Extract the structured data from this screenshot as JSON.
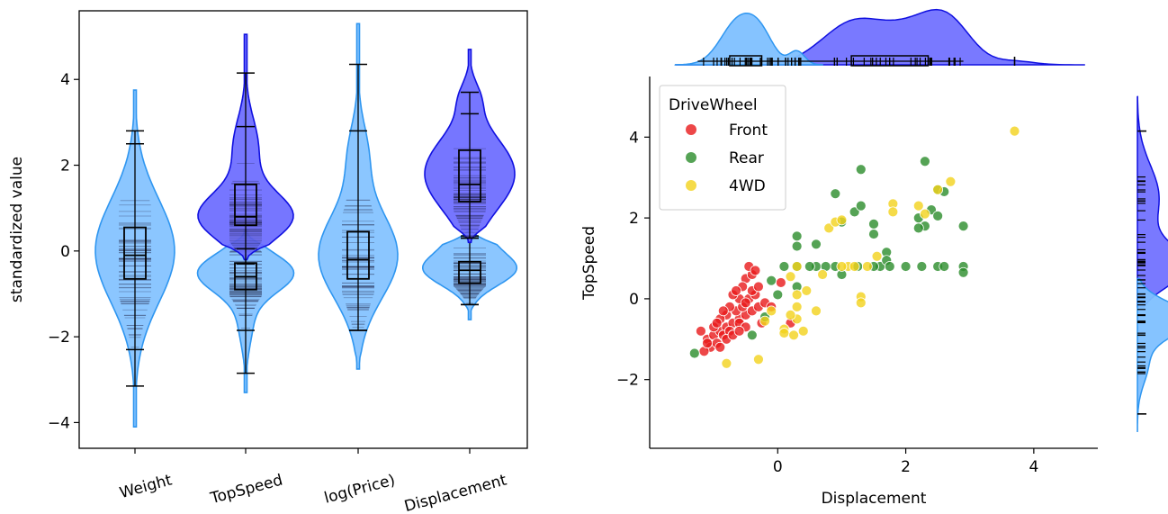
{
  "colors": {
    "light_blue": "#7ec0ff",
    "light_blue_edge": "#2f96f0",
    "dark_blue": "#6a6aff",
    "dark_blue_edge": "#1010e0",
    "front": "#e8191a",
    "rear": "#2a8c2a",
    "fourwd": "#f2d21b"
  },
  "chart_data": [
    {
      "type": "violin",
      "title": "",
      "xlabel": "",
      "ylabel": "standardized value",
      "ylim": [
        -4.6,
        5.6
      ],
      "yticks": [
        -4,
        -2,
        0,
        2,
        4
      ],
      "ytick_labels": [
        "−4",
        "−2",
        "0",
        "2",
        "4"
      ],
      "categories": [
        "Weight",
        "TopSpeed",
        "log(Price)",
        "Displacement"
      ],
      "groups": [
        {
          "category": "Weight",
          "series": "light",
          "median": -0.1,
          "q1": -0.65,
          "q3": 0.55,
          "whisker_low": -2.3,
          "whisker_high": 2.5,
          "min": -3.15,
          "max": 2.8,
          "extent": [
            -4.1,
            3.75
          ]
        },
        {
          "category": "TopSpeed",
          "series": "light",
          "median": -0.6,
          "q1": -0.9,
          "q3": -0.28,
          "whisker_low": -1.85,
          "whisker_high": 0.6,
          "min": -2.85,
          "max": 0.8,
          "extent": [
            -3.3,
            0.5
          ]
        },
        {
          "category": "TopSpeed",
          "series": "dark",
          "median": 0.8,
          "q1": 0.6,
          "q3": 1.55,
          "whisker_low": 0.05,
          "whisker_high": 2.9,
          "min": -0.3,
          "max": 4.15,
          "extent": [
            -0.2,
            5.05
          ]
        },
        {
          "category": "log(Price)",
          "series": "light",
          "median": -0.2,
          "q1": -0.65,
          "q3": 0.45,
          "whisker_low": -1.85,
          "whisker_high": 2.8,
          "min": -1.85,
          "max": 4.35,
          "extent": [
            -2.75,
            5.3
          ]
        },
        {
          "category": "Displacement",
          "series": "light",
          "median": -0.45,
          "q1": -0.75,
          "q3": -0.25,
          "whisker_low": -1.25,
          "whisker_high": 0.35,
          "min": -1.25,
          "max": 0.5,
          "extent": [
            -1.6,
            0.5
          ]
        },
        {
          "category": "Displacement",
          "series": "dark",
          "median": 1.55,
          "q1": 1.15,
          "q3": 2.35,
          "whisker_low": 0.3,
          "whisker_high": 3.2,
          "min": 0.3,
          "max": 3.7,
          "extent": [
            0.2,
            4.7
          ]
        }
      ]
    },
    {
      "type": "scatter",
      "title": "",
      "xlabel": "Displacement",
      "ylabel": "TopSpeed",
      "xlim": [
        -2.0,
        5.0
      ],
      "ylim": [
        -3.7,
        5.5
      ],
      "xticks": [
        0,
        2,
        4
      ],
      "xtick_labels": [
        "0",
        "2",
        "4"
      ],
      "yticks": [
        -2,
        0,
        2,
        4
      ],
      "ytick_labels": [
        "−2",
        "0",
        "2",
        "4"
      ],
      "legend": {
        "title": "DriveWheel",
        "position": "top-left"
      },
      "series": [
        {
          "name": "Front",
          "x": [
            -1.1,
            -1.0,
            -0.9,
            -0.8,
            -0.7,
            -0.6,
            -0.5,
            -0.4,
            -0.3,
            -0.2,
            -1.05,
            -0.95,
            -0.85,
            -0.75,
            -0.65,
            -0.55,
            -0.45,
            -0.35,
            -1.2,
            -1.15,
            -0.9,
            -0.8,
            -0.7,
            -0.6,
            -0.5,
            -0.4,
            -0.3,
            -0.25,
            -0.6,
            -0.5,
            -0.4,
            -0.7,
            -0.8,
            -0.9,
            -1.0,
            -1.1,
            -0.55,
            -0.45,
            -0.35,
            0.05,
            -0.1,
            0.2,
            -0.65,
            -0.75,
            -0.85,
            -0.95,
            -0.6,
            -0.5
          ],
          "y": [
            -1.0,
            -0.9,
            -0.8,
            -0.7,
            -0.6,
            -0.5,
            -0.4,
            -0.3,
            -0.2,
            -0.1,
            -1.2,
            -1.1,
            -0.9,
            -0.8,
            -0.3,
            -0.2,
            0.0,
            0.1,
            -0.8,
            -1.3,
            -1.2,
            -1.0,
            -0.9,
            -0.6,
            -0.7,
            0.2,
            0.3,
            -0.6,
            0.0,
            0.5,
            0.6,
            0.1,
            -0.4,
            -0.5,
            -0.7,
            -1.1,
            0.3,
            0.8,
            0.7,
            0.4,
            -0.2,
            -0.6,
            0.2,
            -0.2,
            -0.3,
            -0.6,
            -0.8,
            -0.1
          ]
        },
        {
          "name": "Rear",
          "x": [
            -1.3,
            -0.4,
            -0.2,
            0.0,
            0.3,
            0.3,
            0.3,
            0.3,
            0.6,
            0.6,
            0.9,
            0.9,
            1.0,
            1.2,
            1.3,
            1.3,
            1.5,
            1.5,
            1.6,
            1.7,
            1.7,
            2.2,
            2.3,
            2.3,
            2.4,
            2.5,
            2.5,
            2.5,
            2.6,
            2.9,
            2.9,
            2.9,
            1.0,
            1.25,
            1.5,
            1.75,
            2.0,
            2.25,
            0.75,
            0.5,
            0.1,
            -0.1,
            2.2,
            2.6
          ],
          "y": [
            -1.35,
            -0.9,
            -0.45,
            0.1,
            1.55,
            1.3,
            0.8,
            0.3,
            1.35,
            0.8,
            2.6,
            0.8,
            1.9,
            2.15,
            2.3,
            3.2,
            1.85,
            1.6,
            0.8,
            1.15,
            0.95,
            2.0,
            1.8,
            3.4,
            2.2,
            2.7,
            2.05,
            0.8,
            0.8,
            1.8,
            0.8,
            0.65,
            0.6,
            0.8,
            0.8,
            0.8,
            0.8,
            0.8,
            0.8,
            0.8,
            0.8,
            0.45,
            1.75,
            2.65
          ]
        },
        {
          "name": "4WD",
          "x": [
            -0.8,
            -0.3,
            -0.2,
            0.1,
            0.3,
            0.3,
            0.3,
            0.4,
            0.6,
            0.8,
            0.9,
            1.0,
            1.1,
            1.2,
            1.3,
            1.4,
            1.55,
            1.8,
            1.8,
            2.2,
            2.3,
            2.5,
            2.7,
            3.7,
            0.3,
            0.45,
            0.2,
            -0.1,
            0.7,
            1.3,
            1.0,
            0.1,
            0.25,
            0.2
          ],
          "y": [
            -1.6,
            -1.5,
            -0.55,
            -0.75,
            0.1,
            -0.2,
            -0.5,
            -0.8,
            -0.3,
            1.75,
            1.9,
            1.95,
            0.8,
            0.8,
            0.05,
            0.8,
            1.05,
            2.35,
            2.15,
            2.3,
            2.1,
            2.7,
            2.9,
            4.15,
            0.8,
            0.2,
            0.55,
            -0.3,
            0.6,
            -0.1,
            0.8,
            -0.85,
            -0.9,
            -0.4
          ]
        }
      ]
    }
  ]
}
